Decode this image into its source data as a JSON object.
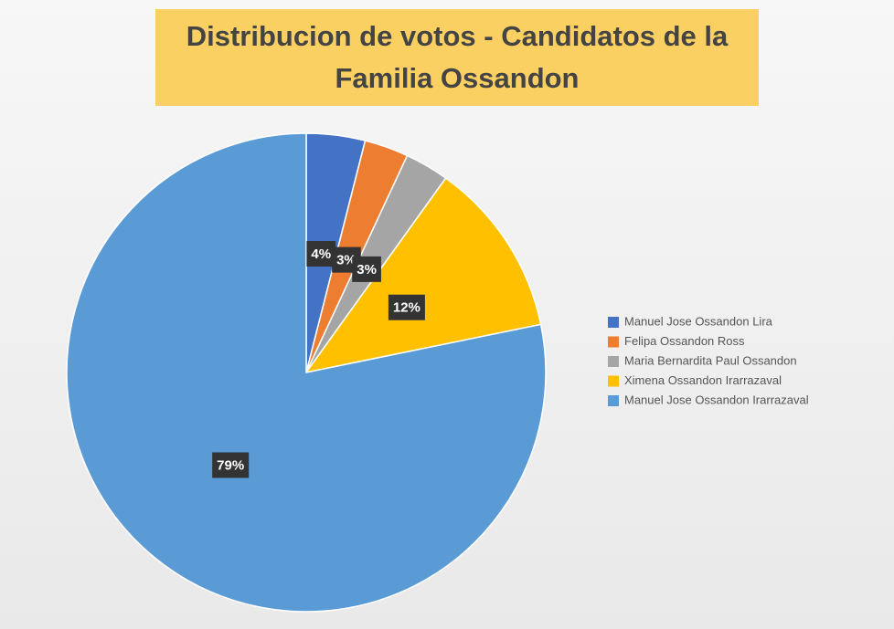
{
  "chart_data": {
    "type": "pie",
    "title": "Distribucion de votos - Candidatos de la Familia Ossandon",
    "categories": [
      "Manuel Jose Ossandon Lira",
      "Felipa Ossandon Ross",
      "Maria Bernardita Paul Ossandon",
      "Ximena Ossandon Irarrazaval",
      "Manuel Jose Ossandon  Irarrazaval"
    ],
    "values": [
      4,
      3,
      3,
      12,
      79
    ],
    "value_labels": [
      "4%",
      "3%",
      "3%",
      "12%",
      "79%"
    ],
    "colors": [
      "#4472c4",
      "#ed7d31",
      "#a5a5a5",
      "#ffc000",
      "#5b9bd5"
    ],
    "legend": "right"
  }
}
